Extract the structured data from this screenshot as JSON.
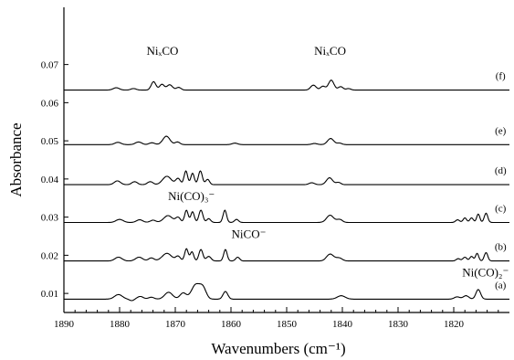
{
  "chart_data": {
    "type": "line",
    "xlabel": "Wavenumbers (cm⁻¹)",
    "ylabel": "Absorbance",
    "xlim": [
      1890,
      1810
    ],
    "x_reversed": true,
    "ylim": [
      0.005,
      0.085
    ],
    "grid": false,
    "legend": "none",
    "x_ticks": [
      "1890",
      "1880",
      "1870",
      "1860",
      "1850",
      "1840",
      "1830",
      "1820"
    ],
    "x_tick_values": [
      1890,
      1880,
      1870,
      1860,
      1850,
      1840,
      1830,
      1820
    ],
    "y_ticks": [
      "0.01",
      "0.02",
      "0.03",
      "0.04",
      "0.05",
      "0.06",
      "0.07"
    ],
    "y_tick_values": [
      0.01,
      0.02,
      0.03,
      0.04,
      0.05,
      0.06,
      0.07
    ],
    "series": [
      {
        "name": "(a)",
        "baseline": 0.0085,
        "peaks": [
          [
            1880.2,
            0.0012,
            1.0
          ],
          [
            1877.8,
            -0.0004,
            0.6
          ],
          [
            1876.3,
            0.0007,
            0.8
          ],
          [
            1874.3,
            0.0005,
            0.7
          ],
          [
            1871.2,
            0.0018,
            1.0
          ],
          [
            1868.6,
            0.0016,
            0.8
          ],
          [
            1866.3,
            0.0038,
            1.1
          ],
          [
            1865.0,
            0.0026,
            0.8
          ],
          [
            1861.0,
            0.002,
            0.6
          ],
          [
            1840.2,
            0.0009,
            1.0
          ],
          [
            1815.6,
            0.0025,
            0.6
          ],
          [
            1817.8,
            0.0009,
            0.7
          ],
          [
            1819.4,
            0.0006,
            0.7
          ]
        ]
      },
      {
        "name": "(b)",
        "baseline": 0.0185,
        "peaks": [
          [
            1880.2,
            0.001,
            0.9
          ],
          [
            1876.5,
            0.001,
            0.9
          ],
          [
            1874.3,
            0.0008,
            0.7
          ],
          [
            1871.5,
            0.002,
            1.2
          ],
          [
            1869.5,
            0.0012,
            0.6
          ],
          [
            1868.0,
            0.0032,
            0.45
          ],
          [
            1867.0,
            0.0024,
            0.45
          ],
          [
            1865.4,
            0.003,
            0.5
          ],
          [
            1864.0,
            0.0012,
            0.6
          ],
          [
            1861.0,
            0.003,
            0.45
          ],
          [
            1858.8,
            0.001,
            0.5
          ],
          [
            1842.2,
            0.0018,
            0.9
          ],
          [
            1840.6,
            0.0008,
            0.8
          ],
          [
            1819.2,
            0.0006,
            0.5
          ],
          [
            1818.0,
            0.001,
            0.5
          ],
          [
            1816.8,
            0.0012,
            0.45
          ],
          [
            1815.8,
            0.002,
            0.4
          ],
          [
            1814.2,
            0.0022,
            0.45
          ]
        ]
      },
      {
        "name": "(c)",
        "baseline": 0.0286,
        "peaks": [
          [
            1880.0,
            0.0008,
            0.9
          ],
          [
            1876.4,
            0.0007,
            0.8
          ],
          [
            1874.0,
            0.0006,
            0.7
          ],
          [
            1871.3,
            0.0018,
            1.1
          ],
          [
            1869.5,
            0.0013,
            0.6
          ],
          [
            1868.0,
            0.0032,
            0.45
          ],
          [
            1866.9,
            0.0028,
            0.45
          ],
          [
            1865.4,
            0.0032,
            0.5
          ],
          [
            1864.0,
            0.001,
            0.5
          ],
          [
            1861.1,
            0.0032,
            0.45
          ],
          [
            1859.0,
            0.0008,
            0.5
          ],
          [
            1842.2,
            0.0019,
            0.9
          ],
          [
            1840.5,
            0.0008,
            0.7
          ],
          [
            1819.3,
            0.0007,
            0.5
          ],
          [
            1818.0,
            0.0012,
            0.45
          ],
          [
            1816.8,
            0.0012,
            0.45
          ],
          [
            1815.6,
            0.0022,
            0.4
          ],
          [
            1814.2,
            0.0024,
            0.45
          ]
        ]
      },
      {
        "name": "(d)",
        "baseline": 0.0385,
        "peaks": [
          [
            1880.4,
            0.001,
            0.8
          ],
          [
            1877.3,
            0.0008,
            0.7
          ],
          [
            1874.5,
            0.0008,
            0.7
          ],
          [
            1871.5,
            0.0022,
            1.1
          ],
          [
            1869.5,
            0.0016,
            0.6
          ],
          [
            1868.1,
            0.0036,
            0.45
          ],
          [
            1866.9,
            0.003,
            0.45
          ],
          [
            1865.5,
            0.0036,
            0.5
          ],
          [
            1864.2,
            0.0014,
            0.5
          ],
          [
            1845.5,
            0.0005,
            0.7
          ],
          [
            1842.3,
            0.0018,
            0.8
          ],
          [
            1840.7,
            0.0006,
            0.6
          ]
        ]
      },
      {
        "name": "(e)",
        "baseline": 0.049,
        "peaks": [
          [
            1880.3,
            0.0006,
            0.8
          ],
          [
            1876.6,
            0.0007,
            0.8
          ],
          [
            1874.2,
            0.0005,
            0.7
          ],
          [
            1871.6,
            0.0022,
            0.9
          ],
          [
            1869.6,
            0.0007,
            0.6
          ],
          [
            1859.3,
            0.0004,
            0.7
          ],
          [
            1845.0,
            0.0003,
            0.7
          ],
          [
            1842.1,
            0.0016,
            0.8
          ],
          [
            1840.5,
            0.0004,
            0.6
          ]
        ]
      },
      {
        "name": "(f)",
        "baseline": 0.0633,
        "peaks": [
          [
            1880.6,
            0.0006,
            0.8
          ],
          [
            1877.5,
            0.0004,
            0.7
          ],
          [
            1873.9,
            0.0022,
            0.6
          ],
          [
            1872.4,
            0.0015,
            0.6
          ],
          [
            1871.0,
            0.0014,
            0.7
          ],
          [
            1869.4,
            0.0007,
            0.6
          ],
          [
            1845.2,
            0.0013,
            0.7
          ],
          [
            1843.5,
            0.001,
            0.6
          ],
          [
            1842.0,
            0.0026,
            0.7
          ],
          [
            1840.3,
            0.0009,
            0.6
          ],
          [
            1838.9,
            0.0004,
            0.6
          ]
        ]
      }
    ],
    "annotations": [
      {
        "text": "NiₓCO",
        "x": 1872.3,
        "y": 0.0725
      },
      {
        "text": "NiₓCO",
        "x": 1842.2,
        "y": 0.0725
      },
      {
        "text": "Ni(CO)₃⁻",
        "x": 1867.1,
        "y": 0.0345
      },
      {
        "text": "NiCO⁻",
        "x": 1856.8,
        "y": 0.0245
      },
      {
        "text": "Ni(CO)₂⁻",
        "x": 1814.3,
        "y": 0.0145
      }
    ]
  }
}
